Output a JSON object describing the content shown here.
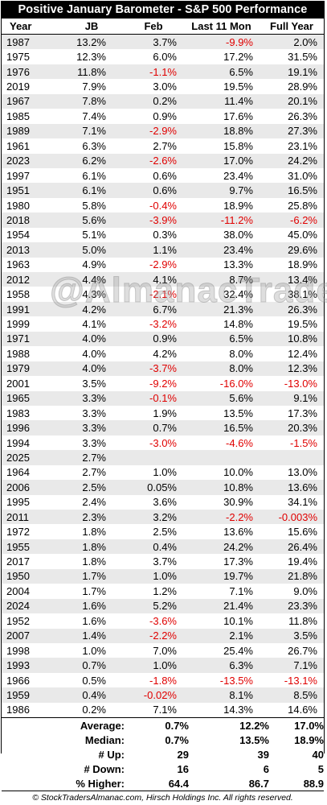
{
  "title": "Positive January Barometer - S&P 500 Performance",
  "headers": [
    "Year",
    "JB",
    "Feb",
    "Last 11 Mon",
    "Full Year"
  ],
  "rows": [
    [
      "1987",
      "13.2%",
      "3.7%",
      "-9.9%",
      "2.0%"
    ],
    [
      "1975",
      "12.3%",
      "6.0%",
      "17.2%",
      "31.5%"
    ],
    [
      "1976",
      "11.8%",
      "-1.1%",
      "6.5%",
      "19.1%"
    ],
    [
      "2019",
      "7.9%",
      "3.0%",
      "19.5%",
      "28.9%"
    ],
    [
      "1967",
      "7.8%",
      "0.2%",
      "11.4%",
      "20.1%"
    ],
    [
      "1985",
      "7.4%",
      "0.9%",
      "17.6%",
      "26.3%"
    ],
    [
      "1989",
      "7.1%",
      "-2.9%",
      "18.8%",
      "27.3%"
    ],
    [
      "1961",
      "6.3%",
      "2.7%",
      "15.8%",
      "23.1%"
    ],
    [
      "2023",
      "6.2%",
      "-2.6%",
      "17.0%",
      "24.2%"
    ],
    [
      "1997",
      "6.1%",
      "0.6%",
      "23.4%",
      "31.0%"
    ],
    [
      "1951",
      "6.1%",
      "0.6%",
      "9.7%",
      "16.5%"
    ],
    [
      "1980",
      "5.8%",
      "-0.4%",
      "18.9%",
      "25.8%"
    ],
    [
      "2018",
      "5.6%",
      "-3.9%",
      "-11.2%",
      "-6.2%"
    ],
    [
      "1954",
      "5.1%",
      "0.3%",
      "38.0%",
      "45.0%"
    ],
    [
      "2013",
      "5.0%",
      "1.1%",
      "23.4%",
      "29.6%"
    ],
    [
      "1963",
      "4.9%",
      "-2.9%",
      "13.3%",
      "18.9%"
    ],
    [
      "2012",
      "4.4%",
      "4.1%",
      "8.7%",
      "13.4%"
    ],
    [
      "1958",
      "4.3%",
      "-2.1%",
      "32.4%",
      "38.1%"
    ],
    [
      "1991",
      "4.2%",
      "6.7%",
      "21.3%",
      "26.3%"
    ],
    [
      "1999",
      "4.1%",
      "-3.2%",
      "14.8%",
      "19.5%"
    ],
    [
      "1971",
      "4.0%",
      "0.9%",
      "6.5%",
      "10.8%"
    ],
    [
      "1988",
      "4.0%",
      "4.2%",
      "8.0%",
      "12.4%"
    ],
    [
      "1979",
      "4.0%",
      "-3.7%",
      "8.0%",
      "12.3%"
    ],
    [
      "2001",
      "3.5%",
      "-9.2%",
      "-16.0%",
      "-13.0%"
    ],
    [
      "1965",
      "3.3%",
      "-0.1%",
      "5.6%",
      "9.1%"
    ],
    [
      "1983",
      "3.3%",
      "1.9%",
      "13.5%",
      "17.3%"
    ],
    [
      "1996",
      "3.3%",
      "0.7%",
      "16.5%",
      "20.3%"
    ],
    [
      "1994",
      "3.3%",
      "-3.0%",
      "-4.6%",
      "-1.5%"
    ],
    [
      "2025",
      "2.7%",
      "",
      "",
      ""
    ],
    [
      "1964",
      "2.7%",
      "1.0%",
      "10.0%",
      "13.0%"
    ],
    [
      "2006",
      "2.5%",
      "0.05%",
      "10.8%",
      "13.6%"
    ],
    [
      "1995",
      "2.4%",
      "3.6%",
      "30.9%",
      "34.1%"
    ],
    [
      "2011",
      "2.3%",
      "3.2%",
      "-2.2%",
      "-0.003%"
    ],
    [
      "1972",
      "1.8%",
      "2.5%",
      "13.6%",
      "15.6%"
    ],
    [
      "1955",
      "1.8%",
      "0.4%",
      "24.2%",
      "26.4%"
    ],
    [
      "2017",
      "1.8%",
      "3.7%",
      "17.3%",
      "19.4%"
    ],
    [
      "1950",
      "1.7%",
      "1.0%",
      "19.7%",
      "21.8%"
    ],
    [
      "2004",
      "1.7%",
      "1.2%",
      "7.1%",
      "9.0%"
    ],
    [
      "2024",
      "1.6%",
      "5.2%",
      "21.4%",
      "23.3%"
    ],
    [
      "1952",
      "1.6%",
      "-3.6%",
      "10.1%",
      "11.8%"
    ],
    [
      "2007",
      "1.4%",
      "-2.2%",
      "2.1%",
      "3.5%"
    ],
    [
      "1998",
      "1.0%",
      "7.0%",
      "25.4%",
      "26.7%"
    ],
    [
      "1993",
      "0.7%",
      "1.0%",
      "6.3%",
      "7.1%"
    ],
    [
      "1966",
      "0.5%",
      "-1.8%",
      "-13.5%",
      "-13.1%"
    ],
    [
      "1959",
      "0.4%",
      "-0.02%",
      "8.1%",
      "8.5%"
    ],
    [
      "1986",
      "0.2%",
      "7.1%",
      "14.3%",
      "14.6%"
    ]
  ],
  "stats": [
    {
      "label": "Average:",
      "feb": "0.7%",
      "last11": "12.2%",
      "full": "17.0%"
    },
    {
      "label": "Median:",
      "feb": "0.7%",
      "last11": "13.5%",
      "full": "18.9%"
    },
    {
      "label": "# Up:",
      "feb": "29",
      "last11": "39",
      "full": "40"
    },
    {
      "label": "# Down:",
      "feb": "16",
      "last11": "6",
      "full": "5"
    },
    {
      "label": "% Higher:",
      "feb": "64.4",
      "last11": "86.7",
      "full": "88.9"
    }
  ],
  "footer": "© StockTradersAlmanac.com, Hirsch Holdings Inc. All rights reserved.",
  "watermark": "@AlmanacTrader",
  "colors": {
    "negative": "#e00000",
    "stripe": "#e9e9e9",
    "title_bg": "#000000"
  }
}
